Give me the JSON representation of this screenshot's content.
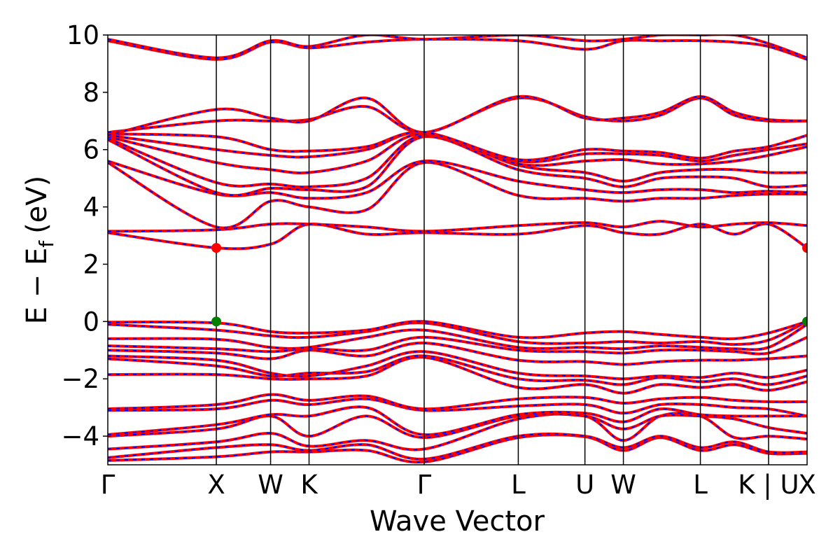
{
  "chart_data": {
    "type": "line",
    "title": "",
    "xlabel": "Wave Vector",
    "ylabel": "E − E",
    "ylabel_subscript": "f",
    "ylabel_unit": "(eV)",
    "ylim": [
      -5,
      10
    ],
    "yticks": [
      {
        "value": -4,
        "label": "−4"
      },
      {
        "value": -2,
        "label": "−2"
      },
      {
        "value": 0,
        "label": "0"
      },
      {
        "value": 2,
        "label": "2"
      },
      {
        "value": 4,
        "label": "4"
      },
      {
        "value": 6,
        "label": "6"
      },
      {
        "value": 8,
        "label": "8"
      },
      {
        "value": 10,
        "label": "10"
      }
    ],
    "xlim": [
      0,
      1
    ],
    "kpath": [
      {
        "label": "Γ",
        "pos": 0.0
      },
      {
        "label": "X",
        "pos": 0.1552
      },
      {
        "label": "W",
        "pos": 0.2328
      },
      {
        "label": "K",
        "pos": 0.2878
      },
      {
        "label": "Γ",
        "pos": 0.4524
      },
      {
        "label": "L",
        "pos": 0.587
      },
      {
        "label": "U",
        "pos": 0.6823
      },
      {
        "label": "W",
        "pos": 0.7373
      },
      {
        "label": "L",
        "pos": 0.8474
      },
      {
        "label": "K | U",
        "pos": 0.9449
      },
      {
        "label": "X",
        "pos": 1.0
      }
    ],
    "grid": false,
    "series_colors": {
      "primary": "#ff0000",
      "overlay": "#0000ff"
    },
    "special_points": [
      {
        "name": "CBM",
        "x": 0.1552,
        "y": 2.57,
        "color": "#ff0000"
      },
      {
        "name": "CBM",
        "x": 1.0,
        "y": 2.57,
        "color": "#ff0000"
      },
      {
        "name": "VBM",
        "x": 0.1552,
        "y": 0.0,
        "color": "#008000"
      },
      {
        "name": "VBM",
        "x": 1.0,
        "y": 0.0,
        "color": "#008000"
      }
    ],
    "bands": [
      [
        -4.85,
        -4.72,
        -4.55,
        -4.55,
        -4.5,
        -4.9,
        -4.05,
        -4.02,
        -4.5,
        -4.05,
        -4.5,
        -4.3,
        -4.6,
        -4.6
      ],
      [
        -4.75,
        -4.4,
        -4.3,
        -4.5,
        -4.3,
        -4.8,
        -4.0,
        -4.0,
        -4.4,
        -4.0,
        -4.4,
        -4.2,
        -4.55,
        -4.55
      ],
      [
        -4.45,
        -4.2,
        -3.9,
        -4.35,
        -4.15,
        -4.45,
        -3.4,
        -3.3,
        -4.15,
        -3.3,
        -3.3,
        -4.05,
        -4.0,
        -4.1
      ],
      [
        -4.0,
        -3.75,
        -3.3,
        -4.0,
        -3.3,
        -4.05,
        -3.3,
        -3.3,
        -3.75,
        -3.3,
        -3.3,
        -3.4,
        -3.7,
        -3.9
      ],
      [
        -3.95,
        -3.6,
        -3.25,
        -3.3,
        -3.0,
        -3.95,
        -3.25,
        -3.2,
        -3.5,
        -3.05,
        -3.25,
        -3.3,
        -3.3,
        -3.3
      ],
      [
        -3.1,
        -3.05,
        -2.75,
        -2.9,
        -2.7,
        -3.1,
        -2.95,
        -2.9,
        -3.2,
        -2.9,
        -2.9,
        -3.0,
        -3.05,
        -3.3
      ],
      [
        -3.05,
        -2.9,
        -2.55,
        -2.75,
        -2.6,
        -3.05,
        -2.7,
        -2.65,
        -2.85,
        -2.7,
        -2.65,
        -2.75,
        -2.8,
        -2.8
      ],
      [
        -1.85,
        -1.85,
        -2.0,
        -2.0,
        -1.9,
        -1.25,
        -2.3,
        -2.2,
        -2.5,
        -2.2,
        -2.3,
        -2.2,
        -2.4,
        -2.1
      ],
      [
        -1.3,
        -1.55,
        -1.9,
        -1.8,
        -1.75,
        -1.2,
        -2.0,
        -2.05,
        -2.2,
        -1.95,
        -2.1,
        -2.0,
        -2.2,
        -1.9
      ],
      [
        -1.2,
        -1.35,
        -1.8,
        -1.9,
        -1.55,
        -1.05,
        -1.8,
        -1.9,
        -2.0,
        -1.9,
        -1.95,
        -1.8,
        -1.95,
        -1.7
      ],
      [
        -1.0,
        -1.1,
        -1.3,
        -1.0,
        -1.2,
        -0.75,
        -1.35,
        -1.4,
        -1.5,
        -1.4,
        -1.35,
        -1.35,
        -1.3,
        -1.2
      ],
      [
        -0.85,
        -0.95,
        -1.05,
        -0.95,
        -1.0,
        -0.55,
        -1.0,
        -1.05,
        -1.1,
        -1.0,
        -1.0,
        -1.05,
        -1.1,
        -0.55
      ],
      [
        -0.6,
        -0.62,
        -0.9,
        -0.9,
        -0.55,
        -0.3,
        -0.9,
        -0.9,
        -0.95,
        -0.85,
        -0.9,
        -0.95,
        -0.9,
        -0.1
      ],
      [
        -0.1,
        -0.3,
        -0.5,
        -0.55,
        -0.35,
        -0.05,
        -0.7,
        -0.75,
        -0.7,
        -0.75,
        -0.7,
        -0.8,
        -0.65,
        0.0
      ],
      [
        -0.02,
        -0.05,
        -0.35,
        -0.4,
        -0.3,
        0.0,
        -0.55,
        -0.4,
        -0.35,
        -0.45,
        -0.55,
        -0.6,
        -0.4,
        0.0
      ],
      [
        3.1,
        2.57,
        2.7,
        3.4,
        3.05,
        3.1,
        3.05,
        3.35,
        3.1,
        3.05,
        3.4,
        3.05,
        3.4,
        2.57
      ],
      [
        3.15,
        3.2,
        3.4,
        3.4,
        3.3,
        3.15,
        3.35,
        3.45,
        3.3,
        3.5,
        3.3,
        3.4,
        3.45,
        3.35
      ],
      [
        5.55,
        3.3,
        4.2,
        4.0,
        3.9,
        5.55,
        4.4,
        4.3,
        4.2,
        4.3,
        4.3,
        4.4,
        4.45,
        4.45
      ],
      [
        5.6,
        4.45,
        4.5,
        4.3,
        4.5,
        5.6,
        4.9,
        4.6,
        4.5,
        4.6,
        4.6,
        4.5,
        4.55,
        4.5
      ],
      [
        6.35,
        4.5,
        4.65,
        4.6,
        4.7,
        6.45,
        5.3,
        5.0,
        4.7,
        5.0,
        5.05,
        5.0,
        4.7,
        4.75
      ],
      [
        6.4,
        4.85,
        4.8,
        4.7,
        5.0,
        6.5,
        5.45,
        5.2,
        4.9,
        5.2,
        5.3,
        5.3,
        5.2,
        5.2
      ],
      [
        6.45,
        5.55,
        5.3,
        5.2,
        5.6,
        6.55,
        5.5,
        5.6,
        5.65,
        5.5,
        5.5,
        5.6,
        5.8,
        6.1
      ],
      [
        6.5,
        6.0,
        5.8,
        5.75,
        6.0,
        6.6,
        5.6,
        5.85,
        5.85,
        5.8,
        5.6,
        5.8,
        6.0,
        6.2
      ],
      [
        6.55,
        6.45,
        6.0,
        5.95,
        6.1,
        6.6,
        5.65,
        6.0,
        5.95,
        5.9,
        5.7,
        5.95,
        6.1,
        6.5
      ],
      [
        6.6,
        7.0,
        7.0,
        7.05,
        7.5,
        6.6,
        7.8,
        7.15,
        7.0,
        7.2,
        7.8,
        7.2,
        7.0,
        7.0
      ],
      [
        6.5,
        7.4,
        7.1,
        7.0,
        7.8,
        6.6,
        7.85,
        7.1,
        7.1,
        7.3,
        7.85,
        7.3,
        7.05,
        7.0
      ],
      [
        9.8,
        9.15,
        9.75,
        9.55,
        9.75,
        9.85,
        9.8,
        9.5,
        9.8,
        9.8,
        9.8,
        9.75,
        9.6,
        9.15
      ],
      [
        9.85,
        9.2,
        9.8,
        9.6,
        10.0,
        9.85,
        10.0,
        9.8,
        9.85,
        10.0,
        10.0,
        10.0,
        9.7,
        9.2
      ]
    ],
    "band_x": [
      0.0,
      0.1552,
      0.2328,
      0.2878,
      0.37,
      0.4524,
      0.587,
      0.6823,
      0.7373,
      0.79,
      0.8474,
      0.8962,
      0.9449,
      1.0
    ]
  }
}
